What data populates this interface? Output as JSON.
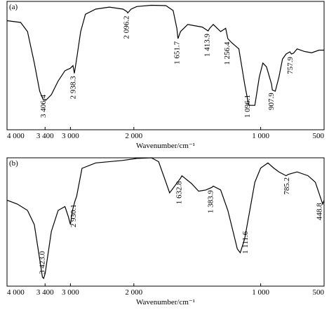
{
  "chart_data": [
    {
      "type": "line",
      "panel_label": "(a)",
      "x_label": "Wavenumber/cm⁻¹",
      "color": "#000000",
      "xlim": [
        4000,
        500
      ],
      "ylim": [
        0,
        100
      ],
      "x_scale_break": 2000,
      "x_scale_factor_below": 2,
      "xticks": [
        {
          "value": 4000,
          "label": "4 000"
        },
        {
          "value": 3400,
          "label": "3 400"
        },
        {
          "value": 3000,
          "label": "3 000"
        },
        {
          "value": 2000,
          "label": "2 000"
        },
        {
          "value": 1000,
          "label": "1 000"
        },
        500
      ],
      "x": [
        4000,
        3785,
        3677,
        3570,
        3484,
        3430,
        3387,
        3301,
        3194,
        3086,
        3000,
        2960,
        2938,
        2903,
        2839,
        2763,
        2602,
        2387,
        2172,
        2108,
        2096,
        2043,
        1977,
        1862,
        1747,
        1690,
        1661,
        1652,
        1632,
        1575,
        1460,
        1414,
        1402,
        1374,
        1316,
        1276,
        1259,
        1230,
        1172,
        1126,
        1096,
        1086,
        1046,
        1011,
        983,
        954,
        914,
        908,
        885,
        856,
        828,
        799,
        770,
        758,
        741,
        713,
        655,
        598,
        540,
        500
      ],
      "values": [
        85,
        83.6,
        76.5,
        52,
        30,
        23.5,
        23,
        27.3,
        38,
        46,
        48,
        50,
        44,
        55,
        76.5,
        90,
        94,
        95.6,
        94,
        92,
        91,
        94,
        96,
        97,
        96.7,
        92.9,
        79,
        71,
        76.5,
        82,
        80,
        77,
        79,
        82,
        76.5,
        79,
        71,
        68,
        63,
        35.5,
        20,
        19,
        19,
        41,
        52,
        49,
        35.5,
        31,
        30,
        41,
        55,
        59,
        60.7,
        59,
        59.6,
        63,
        61,
        60,
        62,
        62
      ],
      "annotations": [
        {
          "x": 3406.4,
          "label": "3 406.4"
        },
        {
          "x": 2938.3,
          "label": "2 938.3"
        },
        {
          "x": 2096.2,
          "label": "2 096.2"
        },
        {
          "x": 1651.7,
          "label": "1 651.7"
        },
        {
          "x": 1413.9,
          "label": "1 413.9"
        },
        {
          "x": 1256.4,
          "label": "1 256.4"
        },
        {
          "x": 1096.1,
          "label": "1 096.1"
        },
        {
          "x": 907.9,
          "label": "907.9"
        },
        {
          "x": 757.9,
          "label": "757.9"
        }
      ]
    },
    {
      "type": "line",
      "panel_label": "(b)",
      "x_label": "Wavenumber/cm⁻¹",
      "color": "#000000",
      "xlim": [
        4000,
        500
      ],
      "ylim": [
        0,
        100
      ],
      "x_scale_break": 2000,
      "x_scale_factor_below": 2,
      "xticks": [
        {
          "value": 4000,
          "label": "4 000"
        },
        {
          "value": 3400,
          "label": "3 400"
        },
        {
          "value": 3000,
          "label": "3 000"
        },
        {
          "value": 2000,
          "label": "2 000"
        },
        {
          "value": 1000,
          "label": "1 000"
        },
        500
      ],
      "x": [
        4000,
        3839,
        3677,
        3570,
        3484,
        3441,
        3423,
        3398,
        3301,
        3194,
        3086,
        3032,
        3000,
        2968,
        2930,
        2903,
        2817,
        2602,
        2172,
        1977,
        1862,
        1805,
        1747,
        1718,
        1678,
        1633,
        1621,
        1546,
        1489,
        1431,
        1384,
        1374,
        1316,
        1259,
        1218,
        1184,
        1161,
        1126,
        1086,
        1046,
        1000,
        943,
        897,
        856,
        799,
        785,
        713,
        626,
        569,
        511,
        500
      ],
      "values": [
        67,
        64,
        59,
        48,
        21,
        7,
        6,
        10,
        42.6,
        59,
        62,
        54,
        48,
        59,
        66,
        69.9,
        91.8,
        96,
        98,
        99.5,
        100,
        97,
        81,
        72.7,
        78,
        84,
        86,
        80,
        74,
        75,
        77,
        78,
        75,
        59,
        42.6,
        29,
        26,
        37,
        59,
        81,
        92,
        96,
        92,
        89,
        86,
        87,
        89,
        86,
        81,
        64,
        67
      ],
      "annotations": [
        {
          "x": 3423.0,
          "label": "3 423.0"
        },
        {
          "x": 2930.1,
          "label": "2 930.1"
        },
        {
          "x": 1632.8,
          "label": "1 632.8"
        },
        {
          "x": 1383.9,
          "label": "1 383.9"
        },
        {
          "x": 1111.6,
          "label": "1 111.6"
        },
        {
          "x": 785.2,
          "label": "785.2"
        },
        {
          "x": 448.8,
          "label": "448.8"
        }
      ]
    }
  ]
}
